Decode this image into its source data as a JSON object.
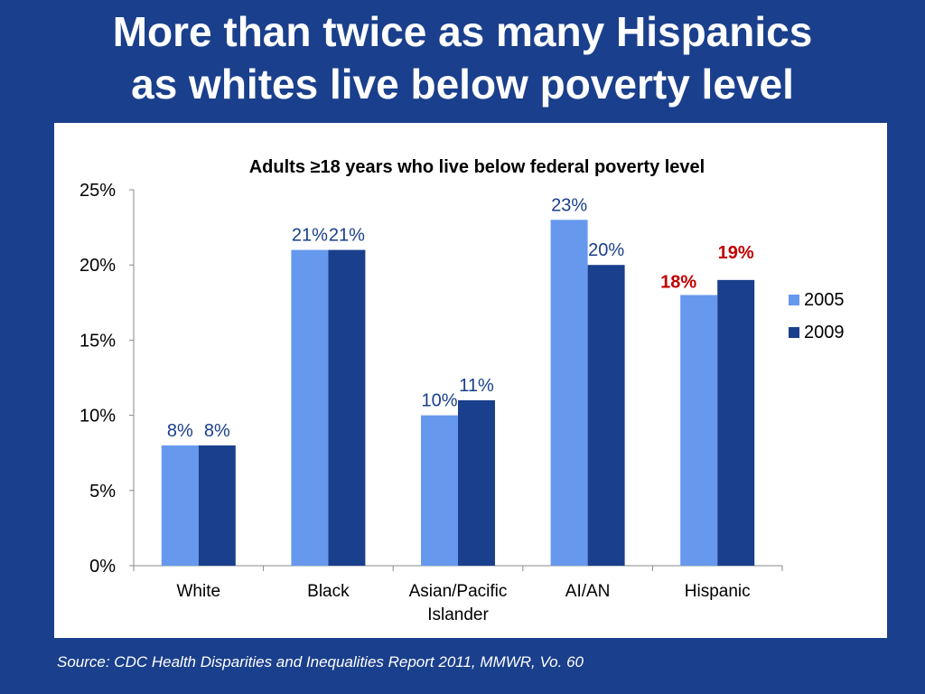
{
  "slide": {
    "title_line1": "More than twice as many Hispanics",
    "title_line2": "as whites live below poverty level",
    "source": "Source: CDC Health Disparities and Inequalities Report 2011, MMWR, Vo. 60"
  },
  "colors": {
    "background": "#1a3f8c",
    "series_2005": "#6699ee",
    "series_2009": "#1a3f8c",
    "label_default": "#1a3f8c",
    "label_highlight": "#c00000"
  },
  "chart_data": {
    "type": "bar",
    "title": "Adults ≥18 years who live below federal poverty level",
    "categories": [
      [
        "White"
      ],
      [
        "Black"
      ],
      [
        "Asian/Pacific",
        "Islander"
      ],
      [
        "AI/AN"
      ],
      [
        "Hispanic"
      ]
    ],
    "series": [
      {
        "name": "2005",
        "values": [
          8,
          21,
          10,
          23,
          18
        ],
        "labels": [
          "8%",
          "21%",
          "10%",
          "23%",
          "18%"
        ]
      },
      {
        "name": "2009",
        "values": [
          8,
          21,
          11,
          20,
          19
        ],
        "labels": [
          "8%",
          "21%",
          "11%",
          "20%",
          "19%"
        ]
      }
    ],
    "highlight_category": "Hispanic",
    "ylim": [
      0,
      25
    ],
    "yticks": [
      0,
      5,
      10,
      15,
      20,
      25
    ],
    "ytick_labels": [
      "0%",
      "5%",
      "10%",
      "15%",
      "20%",
      "25%"
    ],
    "legend_position": "right",
    "grid": false
  }
}
